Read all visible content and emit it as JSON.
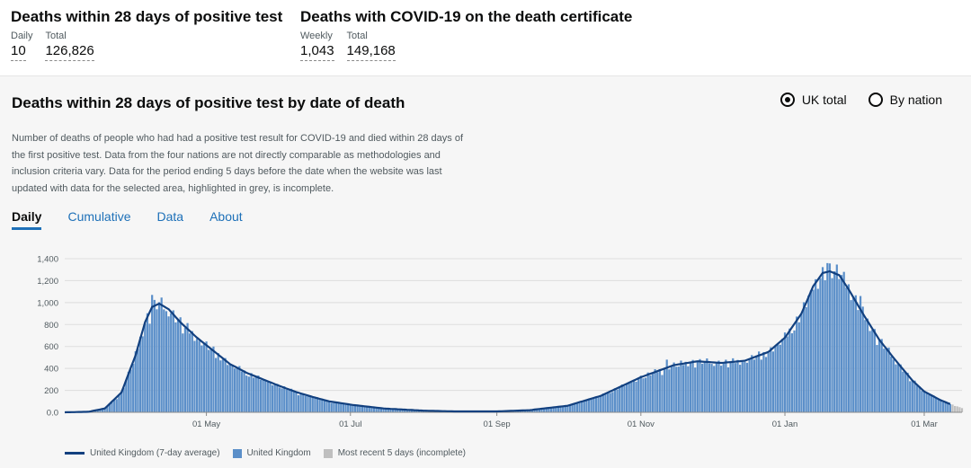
{
  "headlines": [
    {
      "title": "Deaths within 28 days of positive test",
      "metrics": [
        {
          "label": "Daily",
          "value": "10"
        },
        {
          "label": "Total",
          "value": "126,826"
        }
      ]
    },
    {
      "title": "Deaths with COVID-19 on the death certificate",
      "metrics": [
        {
          "label": "Weekly",
          "value": "1,043"
        },
        {
          "label": "Total",
          "value": "149,168"
        }
      ]
    }
  ],
  "card": {
    "title": "Deaths within 28 days of positive test by date of death",
    "description": "Number of deaths of people who had had a positive test result for COVID-19 and died within 28 days of the first positive test. Data from the four nations are not directly comparable as methodologies and inclusion criteria vary. Data for the period ending 5 days before the date when the website was last updated with data for the selected area, highlighted in grey, is incomplete.",
    "radios": [
      {
        "label": "UK total",
        "selected": true
      },
      {
        "label": "By nation",
        "selected": false
      }
    ],
    "tabs": [
      {
        "label": "Daily",
        "active": true
      },
      {
        "label": "Cumulative",
        "active": false
      },
      {
        "label": "Data",
        "active": false
      },
      {
        "label": "About",
        "active": false
      }
    ]
  },
  "colors": {
    "bar": "#5b8fc9",
    "line": "#12407f",
    "incomplete": "#bfbfbf",
    "grid": "#dddddd"
  },
  "chart_data": {
    "type": "bar",
    "x_start": "2020-03-02",
    "x_end": "2021-03-17",
    "x_ticks": [
      "01 May",
      "01 Jul",
      "01 Sep",
      "01 Nov",
      "01 Jan",
      "01 Mar"
    ],
    "y_ticks": [
      "0.0",
      "200",
      "400",
      "600",
      "800",
      "1,000",
      "1,200",
      "1,400"
    ],
    "ylim": [
      0,
      1400
    ],
    "legend": [
      "United Kingdom (7-day average)",
      "United Kingdom",
      "Most recent 5 days (incomplete)"
    ],
    "incomplete_days": 5,
    "trend_points": [
      [
        "2020-03-02",
        0
      ],
      [
        "2020-03-12",
        5
      ],
      [
        "2020-03-19",
        35
      ],
      [
        "2020-03-26",
        180
      ],
      [
        "2020-04-01",
        520
      ],
      [
        "2020-04-05",
        820
      ],
      [
        "2020-04-08",
        960
      ],
      [
        "2020-04-11",
        990
      ],
      [
        "2020-04-15",
        940
      ],
      [
        "2020-04-20",
        820
      ],
      [
        "2020-04-27",
        680
      ],
      [
        "2020-05-04",
        560
      ],
      [
        "2020-05-11",
        440
      ],
      [
        "2020-05-18",
        360
      ],
      [
        "2020-05-25",
        300
      ],
      [
        "2020-06-01",
        240
      ],
      [
        "2020-06-08",
        185
      ],
      [
        "2020-06-15",
        140
      ],
      [
        "2020-06-22",
        100
      ],
      [
        "2020-07-01",
        70
      ],
      [
        "2020-07-15",
        35
      ],
      [
        "2020-08-01",
        15
      ],
      [
        "2020-08-15",
        8
      ],
      [
        "2020-09-01",
        8
      ],
      [
        "2020-09-15",
        20
      ],
      [
        "2020-10-01",
        60
      ],
      [
        "2020-10-15",
        150
      ],
      [
        "2020-11-01",
        320
      ],
      [
        "2020-11-15",
        430
      ],
      [
        "2020-11-25",
        465
      ],
      [
        "2020-12-05",
        450
      ],
      [
        "2020-12-15",
        470
      ],
      [
        "2020-12-25",
        550
      ],
      [
        "2021-01-01",
        680
      ],
      [
        "2021-01-08",
        900
      ],
      [
        "2021-01-13",
        1150
      ],
      [
        "2021-01-17",
        1270
      ],
      [
        "2021-01-20",
        1285
      ],
      [
        "2021-01-24",
        1250
      ],
      [
        "2021-01-28",
        1120
      ],
      [
        "2021-02-03",
        900
      ],
      [
        "2021-02-10",
        660
      ],
      [
        "2021-02-17",
        470
      ],
      [
        "2021-02-24",
        290
      ],
      [
        "2021-03-01",
        190
      ],
      [
        "2021-03-08",
        110
      ],
      [
        "2021-03-12",
        75
      ],
      [
        "2021-03-17",
        40
      ]
    ],
    "spikes": [
      [
        "2020-04-08",
        1070
      ],
      [
        "2020-04-22",
        770
      ],
      [
        "2020-11-12",
        480
      ],
      [
        "2020-11-26",
        485
      ],
      [
        "2021-01-19",
        1360
      ],
      [
        "2021-01-26",
        1280
      ],
      [
        "2021-02-02",
        1060
      ]
    ]
  }
}
